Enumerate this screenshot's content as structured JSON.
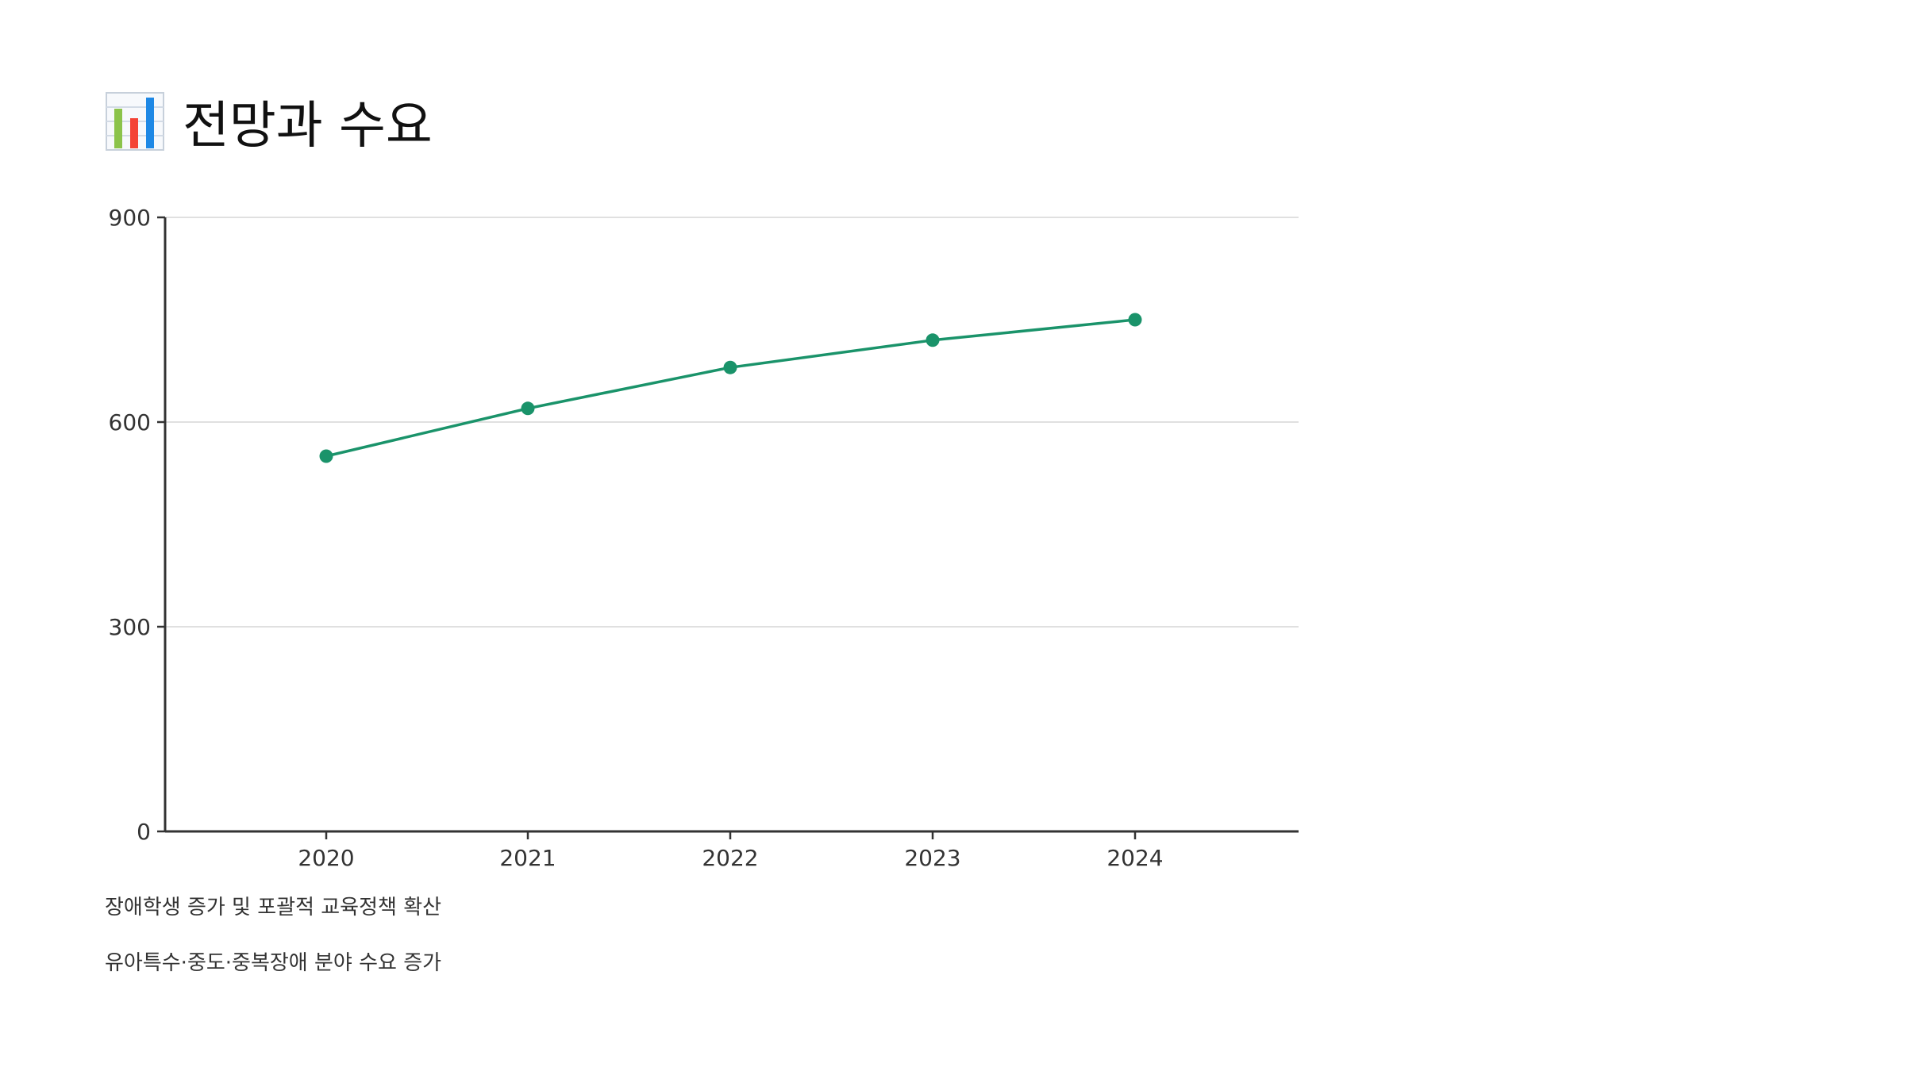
{
  "header": {
    "title": "전망과 수요",
    "icon": "bar-chart-icon"
  },
  "chart_data": {
    "type": "line",
    "x": [
      "2020",
      "2021",
      "2022",
      "2023",
      "2024"
    ],
    "series": [
      {
        "values": [
          550,
          620,
          680,
          720,
          750
        ]
      }
    ],
    "yticks": [
      "0",
      "300",
      "600",
      "900"
    ],
    "ylim": [
      0,
      900
    ],
    "grid": true,
    "legend": "none",
    "color": "#1a936a"
  },
  "notes": [
    "장애학생 증가 및 포괄적 교육정책 확산",
    "유아특수·중도·중복장애 분야 수요 증가"
  ]
}
